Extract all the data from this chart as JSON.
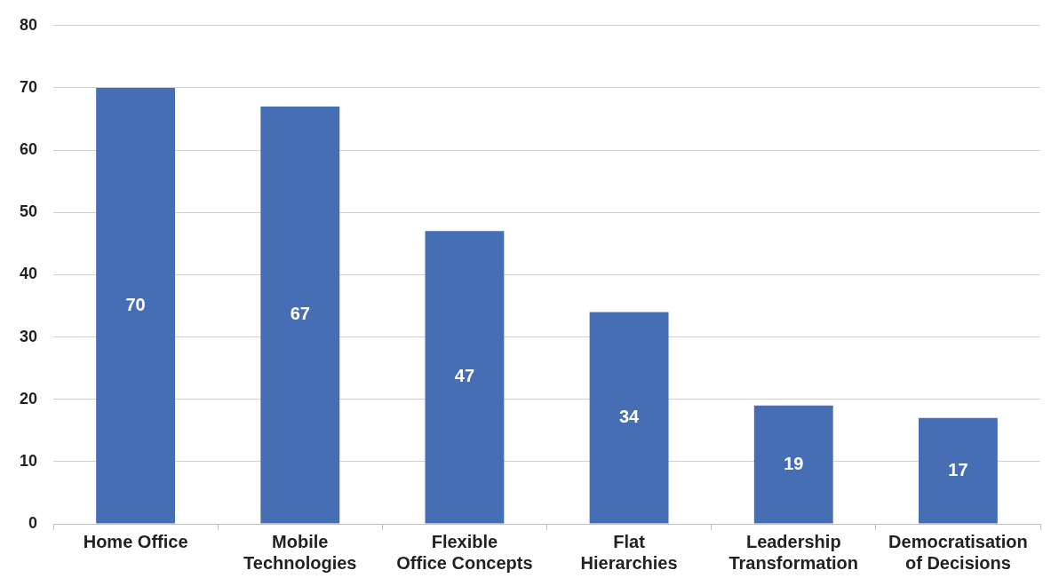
{
  "chart_data": {
    "type": "bar",
    "categories": [
      "Home Office",
      "Mobile Technologies",
      "Flexible Office Concepts",
      "Flat Hierarchies",
      "Leadership Transformation",
      "Democratisation of Decisions"
    ],
    "values": [
      70,
      67,
      47,
      34,
      19,
      17
    ],
    "color": "#466eb4",
    "ylim": [
      0,
      80
    ],
    "yticks": [
      0,
      10,
      20,
      30,
      40,
      50,
      60,
      70,
      80
    ],
    "grid": "y",
    "data_labels": true,
    "legend": false
  }
}
